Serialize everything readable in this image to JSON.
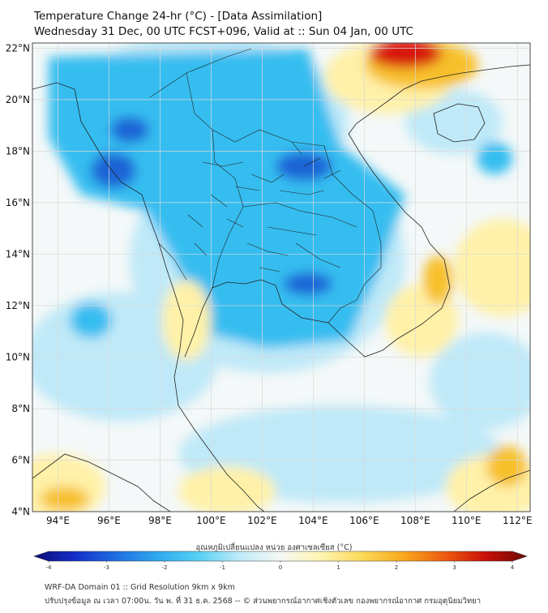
{
  "title_line1": "Temperature Change 24-hr (°C) - [Data Assimilation]",
  "title_line2": "Wednesday 31 Dec, 00 UTC FCST+096, Valid at :: Sun 04 Jan, 00 UTC",
  "map": {
    "lon_range": [
      93,
      112.5
    ],
    "lat_range": [
      4,
      22.2
    ],
    "lon_ticks": [
      "94°E",
      "96°E",
      "98°E",
      "100°E",
      "102°E",
      "104°E",
      "106°E",
      "108°E",
      "110°E",
      "112°E"
    ],
    "lat_ticks": [
      "4°N",
      "6°N",
      "8°N",
      "10°N",
      "12°N",
      "14°N",
      "16°N",
      "18°N",
      "20°N",
      "22°N"
    ],
    "colors": {
      "background_neutral": "#f4f8f8",
      "cold_light": "#bfe9f8",
      "cold_mid": "#36bdf0",
      "cold_strong": "#1a63d6",
      "warm_light": "#fff1a8",
      "warm_mid": "#f7c02b",
      "warm_strong": "#d8130e",
      "grid": "#d9d9d9",
      "coast": "#222222"
    }
  },
  "colorbar": {
    "title": "อุณหภูมิเปลี่ยนแปลง หน่วย องศาเซลเซียส (°C)",
    "ticks": [
      "-4",
      "-3",
      "-2",
      "-1",
      "0",
      "1",
      "2",
      "3",
      "4"
    ],
    "range": [
      -4,
      4
    ],
    "stops": [
      "#0a0a78",
      "#1430c8",
      "#1f6ee0",
      "#2fa8ee",
      "#55d0f4",
      "#bfeaf8",
      "#f4f8f4",
      "#fff3b0",
      "#fbd958",
      "#f8a81e",
      "#ee5a10",
      "#c81008",
      "#6a0804"
    ]
  },
  "footer_line1": "WRF-DA Domain 01 :: Grid Resolution 9km x 9km",
  "footer_line2": "ปรับปรุงข้อมูล ณ เวลา 07:00น. วัน พ. ที่ 31 ธ.ค. 2568 -- © ส่วนพยากรณ์อากาศเชิงตัวเลข กองพยากรณ์อากาศ กรมอุตุนิยมวิทยา"
}
